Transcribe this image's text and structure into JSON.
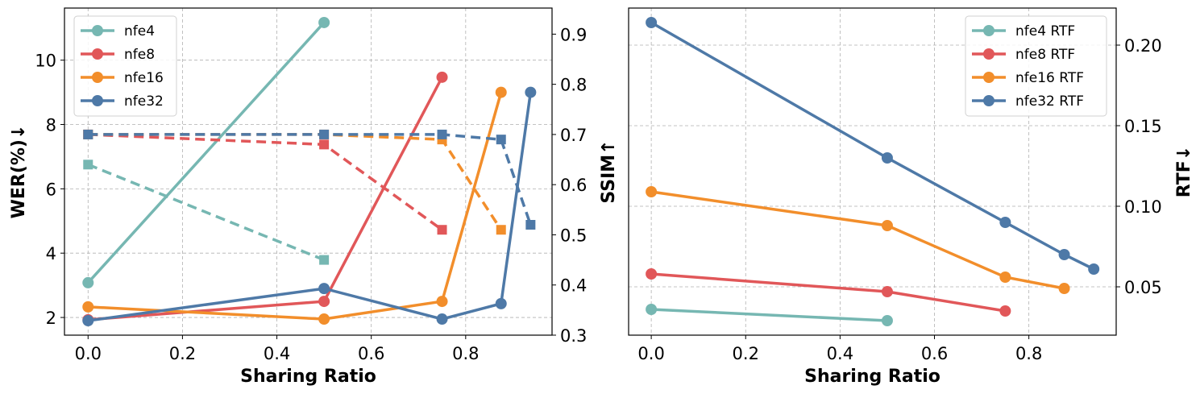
{
  "colors": {
    "nfe4": "#76b7b2",
    "nfe8": "#e15759",
    "nfe16": "#f28e2b",
    "nfe32": "#4e79a7"
  },
  "chart_data": [
    {
      "type": "line",
      "xlabel": "Sharing Ratio",
      "ylabel": "WER(%)↓",
      "y2label": "SSIM↑",
      "xlim": [
        -0.05,
        0.983
      ],
      "ylim": [
        1.45,
        11.62
      ],
      "y2lim": [
        0.3,
        0.952
      ],
      "xticks": [
        "0.0",
        "0.2",
        "0.4",
        "0.6",
        "0.8"
      ],
      "xtick_values": [
        0,
        0.2,
        0.4,
        0.6,
        0.8
      ],
      "yticks": [
        "2",
        "4",
        "6",
        "8",
        "10"
      ],
      "ytick_values": [
        2,
        4,
        6,
        8,
        10
      ],
      "y2ticks": [
        "0.3",
        "0.4",
        "0.5",
        "0.6",
        "0.7",
        "0.8",
        "0.9"
      ],
      "y2tick_values": [
        0.3,
        0.4,
        0.5,
        0.6,
        0.7,
        0.8,
        0.9
      ],
      "grid": true,
      "legend_position": "top-left",
      "series": [
        {
          "name": "nfe4",
          "color": "#76b7b2",
          "x": [
            0,
            0.5
          ],
          "wer": [
            3.08,
            11.17
          ],
          "ssim": [
            0.64,
            0.45
          ]
        },
        {
          "name": "nfe8",
          "color": "#e15759",
          "x": [
            0,
            0.5,
            0.75
          ],
          "wer": [
            1.93,
            2.5,
            9.47
          ],
          "ssim": [
            0.7,
            0.68,
            0.51
          ]
        },
        {
          "name": "nfe16",
          "color": "#f28e2b",
          "x": [
            0,
            0.5,
            0.75,
            0.875
          ],
          "wer": [
            2.33,
            1.95,
            2.5,
            9.0
          ],
          "ssim": [
            0.7,
            0.7,
            0.69,
            0.51
          ]
        },
        {
          "name": "nfe32",
          "color": "#4e79a7",
          "x": [
            0,
            0.5,
            0.75,
            0.875,
            0.9375
          ],
          "wer": [
            1.9,
            2.9,
            1.95,
            2.43,
            9.0
          ],
          "ssim": [
            0.7,
            0.7,
            0.7,
            0.69,
            0.52
          ]
        }
      ]
    },
    {
      "type": "line",
      "xlabel": "Sharing Ratio",
      "ylabel": "RTF↓",
      "xlim": [
        -0.048,
        0.985
      ],
      "ylim": [
        0.02,
        0.223
      ],
      "xticks": [
        "0.0",
        "0.2",
        "0.4",
        "0.6",
        "0.8"
      ],
      "xtick_values": [
        0,
        0.2,
        0.4,
        0.6,
        0.8
      ],
      "yticks": [
        "0.05",
        "0.10",
        "0.15",
        "0.20"
      ],
      "ytick_values": [
        0.05,
        0.1,
        0.15,
        0.2
      ],
      "grid": true,
      "legend_position": "top-right",
      "series": [
        {
          "name": "nfe4 RTF",
          "color": "#76b7b2",
          "x": [
            0,
            0.5
          ],
          "y": [
            0.036,
            0.029
          ]
        },
        {
          "name": "nfe8 RTF",
          "color": "#e15759",
          "x": [
            0,
            0.5,
            0.75
          ],
          "y": [
            0.058,
            0.047,
            0.035
          ]
        },
        {
          "name": "nfe16 RTF",
          "color": "#f28e2b",
          "x": [
            0,
            0.5,
            0.75,
            0.875
          ],
          "y": [
            0.109,
            0.088,
            0.056,
            0.049
          ]
        },
        {
          "name": "nfe32 RTF",
          "color": "#4e79a7",
          "x": [
            0,
            0.5,
            0.75,
            0.875,
            0.9375
          ],
          "y": [
            0.214,
            0.13,
            0.09,
            0.07,
            0.061
          ]
        }
      ]
    }
  ]
}
